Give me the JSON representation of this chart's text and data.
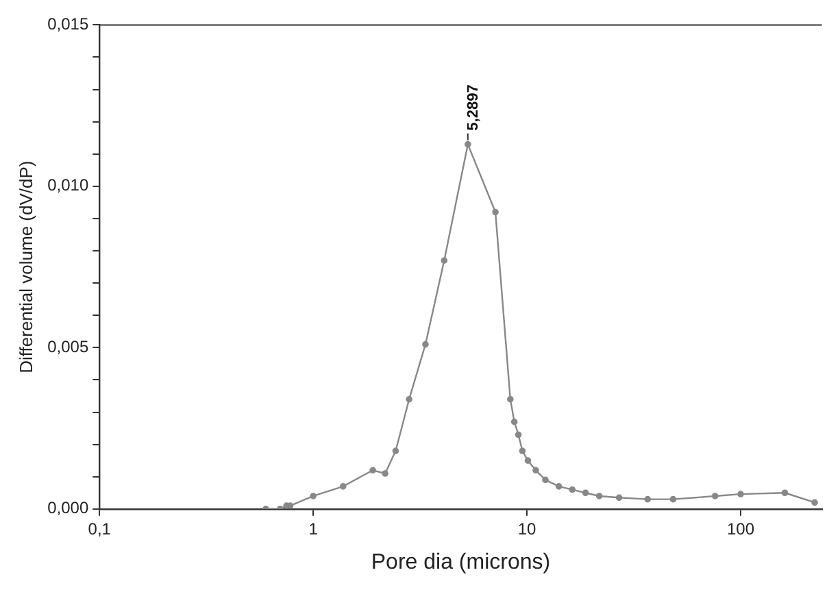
{
  "chart_data": {
    "type": "line",
    "xlabel": "Pore dia (microns)",
    "ylabel": "Differential volume (dV/dP)",
    "x": [
      0.6,
      0.7,
      0.75,
      0.78,
      1.0,
      1.38,
      1.9,
      2.17,
      2.43,
      2.81,
      3.35,
      4.1,
      5.29,
      7.12,
      8.36,
      8.73,
      9.12,
      9.52,
      10.1,
      11.0,
      12.2,
      14.1,
      16.3,
      18.8,
      21.8,
      27.0,
      36.7,
      48.3,
      75.9,
      100,
      161,
      222
    ],
    "series": [
      {
        "color": "#888888",
        "values": [
          0.0,
          0.0,
          0.0001,
          0.0001,
          0.0004,
          0.0007,
          0.0012,
          0.0011,
          0.0018,
          0.0034,
          0.0051,
          0.0077,
          0.0113,
          0.0092,
          0.0034,
          0.0027,
          0.0023,
          0.0018,
          0.0015,
          0.0012,
          0.0009,
          0.0007,
          0.0006,
          0.0005,
          0.0004,
          0.00035,
          0.0003,
          0.0003,
          0.0004,
          0.00046,
          0.0005,
          0.0002
        ]
      }
    ],
    "log": "x",
    "xlim": [
      0.1,
      240
    ],
    "ylim": [
      0,
      0.015
    ],
    "xticks": [
      {
        "value": 0.1,
        "label": "0,1"
      },
      1,
      10,
      100
    ],
    "yticks": [
      {
        "value": 0,
        "label": "0,000"
      },
      {
        "value": 0.001,
        "label": null
      },
      {
        "value": 0.002,
        "label": null
      },
      {
        "value": 0.003,
        "label": null
      },
      {
        "value": 0.004,
        "label": null
      },
      {
        "value": 0.005,
        "label": "0,005"
      },
      {
        "value": 0.006,
        "label": null
      },
      {
        "value": 0.007,
        "label": null
      },
      {
        "value": 0.008,
        "label": null
      },
      {
        "value": 0.009,
        "label": null
      },
      {
        "value": 0.01,
        "label": "0,010"
      },
      {
        "value": 0.011,
        "label": null
      },
      {
        "value": 0.012,
        "label": null
      },
      {
        "value": 0.013,
        "label": null
      },
      {
        "value": 0.014,
        "label": null
      },
      {
        "value": 0.015,
        "label": "0,015"
      }
    ],
    "annotations": [
      {
        "text": "5,2897",
        "x": 5.29,
        "y": 0.0113
      }
    ],
    "marker": "circle",
    "line_style": "solid",
    "grid": false,
    "legend": false
  }
}
